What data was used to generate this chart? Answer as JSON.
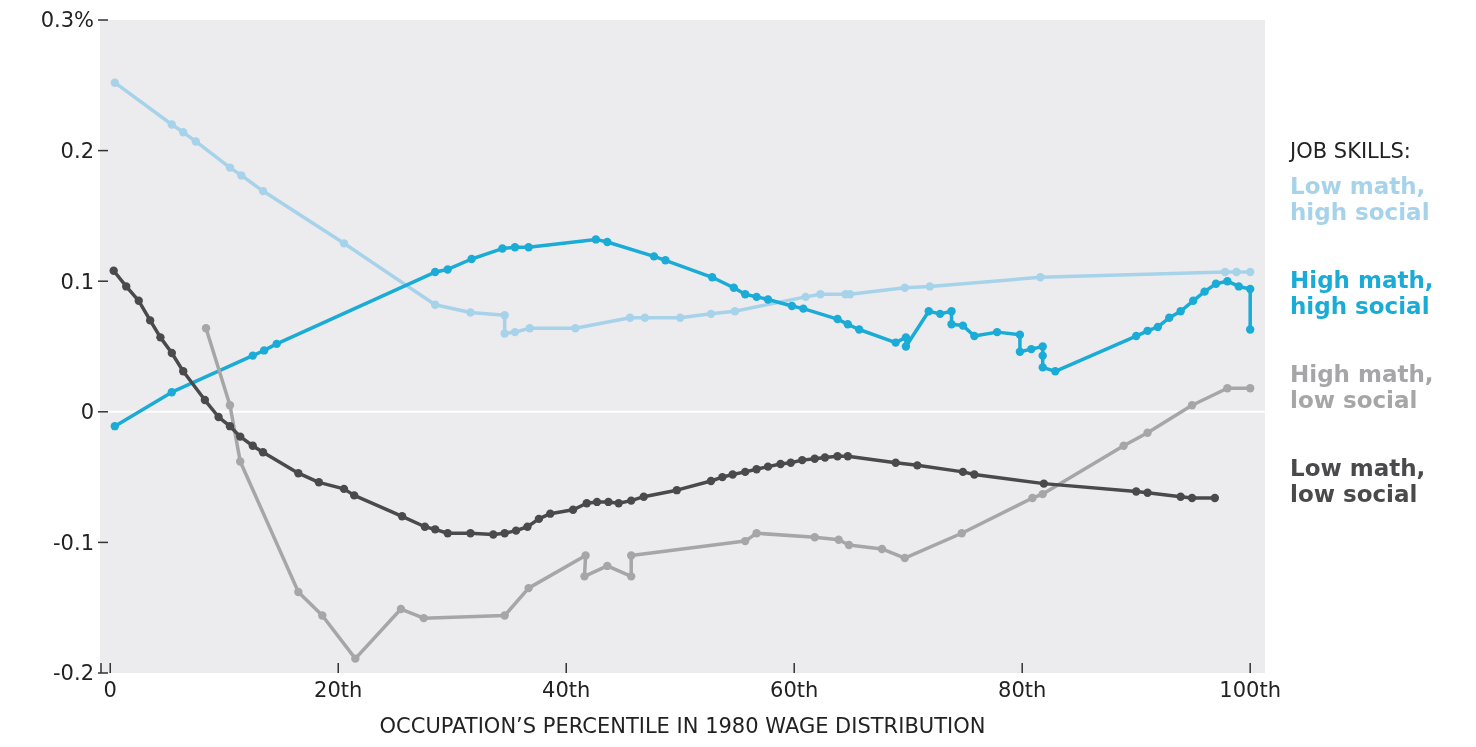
{
  "chart_data": {
    "type": "line",
    "xlabel": "OCCUPATION’S PERCENTILE IN 1980 WAGE DISTRIBUTION",
    "legend_title": "JOB SKILLS:",
    "legend": "right",
    "marker": "circle",
    "line_style": "solid",
    "grid": false,
    "xlim": [
      -0.9,
      101.3
    ],
    "xticks": [
      0,
      {
        "value": 20,
        "label": "20th"
      },
      {
        "value": 40,
        "label": "40th"
      },
      {
        "value": 60,
        "label": "60th"
      },
      {
        "value": 80,
        "label": "80th"
      },
      {
        "value": 100,
        "label": "100th"
      }
    ],
    "ylim": [
      -0.2,
      0.3
    ],
    "yticks": [
      {
        "value": -0.2,
        "label": "-0.2"
      },
      {
        "value": -0.1,
        "label": "-0.1"
      },
      0,
      0.1,
      0.2,
      {
        "value": 0.3,
        "label": "0.3%"
      }
    ],
    "ref_lines": [
      {
        "axis": "y",
        "value": 0,
        "label": null,
        "color": "#ffffff"
      }
    ],
    "series": [
      {
        "name": "Low math, high social",
        "color": "#a6d3ea",
        "x": [
          0.4,
          5.4,
          6.4,
          7.5,
          10.5,
          11.5,
          13.4,
          20.5,
          28.5,
          31.6,
          34.6,
          34.6,
          35.5,
          36.8,
          40.8,
          45.6,
          46.9,
          50,
          52.7,
          54.8,
          61,
          62.3,
          64.5,
          64.9,
          69.7,
          71.9,
          81.6,
          97.8,
          98.8,
          100
        ],
        "values": [
          0.252,
          0.22,
          0.214,
          0.207,
          0.187,
          0.181,
          0.169,
          0.129,
          0.082,
          0.076,
          0.074,
          0.06,
          0.061,
          0.064,
          0.064,
          0.072,
          0.072,
          0.072,
          0.075,
          0.077,
          0.088,
          0.09,
          0.09,
          0.09,
          0.095,
          0.096,
          0.103,
          0.107,
          0.107,
          0.107
        ]
      },
      {
        "name": "High math, high social",
        "color": "#1aabd6",
        "x": [
          0.4,
          5.4,
          12.5,
          13.5,
          14.6,
          28.5,
          29.6,
          31.7,
          34.4,
          35.5,
          36.7,
          42.6,
          43.6,
          47.7,
          48.7,
          52.8,
          54.7,
          55.7,
          56.7,
          57.7,
          59.8,
          60.8,
          63.8,
          64.7,
          65.7,
          68.9,
          69.8,
          69.8,
          71.8,
          72.8,
          73.8,
          73.8,
          74.8,
          75.8,
          77.8,
          79.8,
          79.8,
          80.8,
          81.8,
          81.8,
          81.8,
          82.9,
          90,
          91,
          91.9,
          92.9,
          93.9,
          95,
          96,
          97,
          98,
          99,
          100,
          100
        ],
        "values": [
          -0.011,
          0.015,
          0.043,
          0.047,
          0.052,
          0.107,
          0.109,
          0.117,
          0.125,
          0.126,
          0.126,
          0.132,
          0.13,
          0.119,
          0.116,
          0.103,
          0.095,
          0.09,
          0.088,
          0.086,
          0.081,
          0.079,
          0.071,
          0.067,
          0.063,
          0.053,
          0.057,
          0.05,
          0.077,
          0.075,
          0.077,
          0.067,
          0.066,
          0.058,
          0.061,
          0.059,
          0.046,
          0.048,
          0.05,
          0.043,
          0.034,
          0.031,
          0.058,
          0.062,
          0.065,
          0.072,
          0.077,
          0.085,
          0.092,
          0.098,
          0.1,
          0.096,
          0.094,
          0.063
        ]
      },
      {
        "name": "High math, low social",
        "color": "#a6a6a8",
        "x": [
          8.4,
          10.5,
          11.4,
          16.5,
          18.6,
          21.5,
          25.5,
          27.5,
          34.6,
          36.7,
          41.7,
          41.6,
          43.6,
          45.7,
          45.7,
          55.7,
          56.7,
          61.8,
          63.9,
          64.8,
          67.7,
          69.7,
          74.7,
          80.9,
          81.8,
          88.9,
          91,
          94.9,
          98,
          100
        ],
        "values": [
          0.064,
          0.005,
          -0.038,
          -0.138,
          -0.156,
          -0.189,
          -0.151,
          -0.158,
          -0.156,
          -0.135,
          -0.11,
          -0.126,
          -0.118,
          -0.126,
          -0.11,
          -0.099,
          -0.093,
          -0.096,
          -0.098,
          -0.102,
          -0.105,
          -0.112,
          -0.093,
          -0.066,
          -0.063,
          -0.026,
          -0.016,
          0.005,
          0.018,
          0.018
        ]
      },
      {
        "name": "Low math, low social",
        "color": "#4a4a4c",
        "x": [
          0.3,
          1.4,
          2.5,
          3.5,
          4.4,
          5.4,
          6.4,
          8.3,
          9.5,
          10.5,
          11.4,
          12.5,
          13.4,
          16.5,
          18.3,
          20.5,
          21.4,
          25.6,
          27.6,
          28.5,
          29.6,
          31.6,
          33.6,
          34.6,
          35.6,
          36.6,
          37.6,
          38.6,
          40.6,
          41.8,
          42.7,
          43.7,
          44.6,
          45.7,
          46.8,
          49.7,
          52.7,
          53.7,
          54.6,
          55.7,
          56.7,
          57.7,
          58.8,
          59.7,
          60.7,
          61.8,
          62.7,
          63.8,
          64.7,
          68.9,
          70.8,
          74.8,
          75.8,
          81.9,
          90,
          91,
          93.9,
          94.9,
          96.9
        ],
        "values": [
          0.108,
          0.096,
          0.085,
          0.07,
          0.057,
          0.045,
          0.031,
          0.009,
          -0.004,
          -0.011,
          -0.019,
          -0.026,
          -0.031,
          -0.047,
          -0.054,
          -0.059,
          -0.064,
          -0.08,
          -0.088,
          -0.09,
          -0.093,
          -0.093,
          -0.094,
          -0.093,
          -0.091,
          -0.088,
          -0.082,
          -0.078,
          -0.075,
          -0.07,
          -0.069,
          -0.069,
          -0.07,
          -0.068,
          -0.065,
          -0.06,
          -0.053,
          -0.05,
          -0.048,
          -0.046,
          -0.044,
          -0.042,
          -0.04,
          -0.039,
          -0.037,
          -0.036,
          -0.035,
          -0.034,
          -0.034,
          -0.039,
          -0.041,
          -0.046,
          -0.048,
          -0.055,
          -0.061,
          -0.062,
          -0.065,
          -0.066,
          -0.066
        ]
      }
    ]
  }
}
